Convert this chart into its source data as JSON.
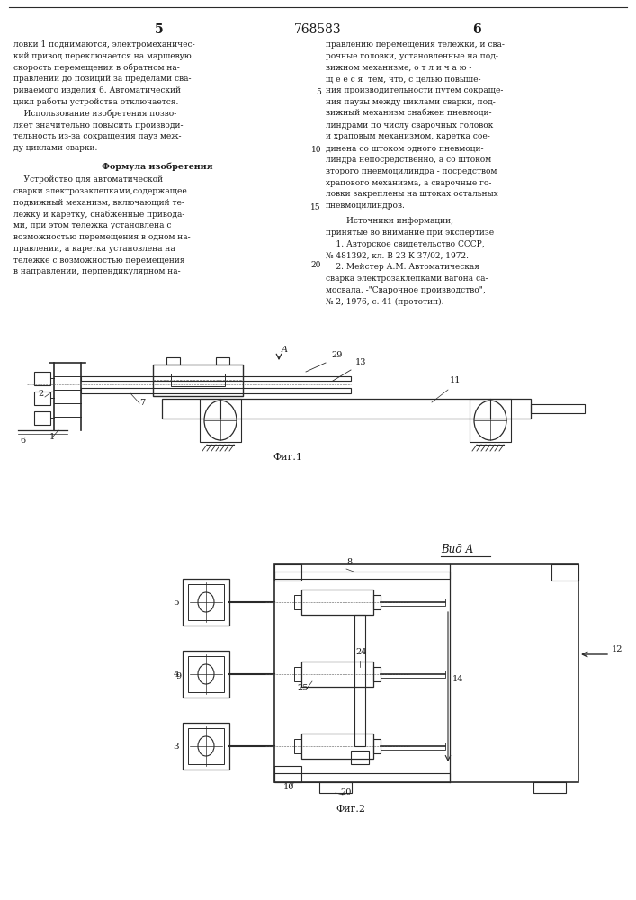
{
  "page_number_left": "5",
  "page_number_center": "768583",
  "page_number_right": "6",
  "left_col_text": [
    "ловки 1 поднимаются, электромеханичес-",
    "кий привод переключается на маршевую",
    "скорость перемещения в обратном на-",
    "правлении до позиций за пределами сва-",
    "риваемого изделия 6. Автоматический",
    "цикл работы устройства отключается.",
    "    Использование изобретения позво-",
    "ляет значительно повысить производи-",
    "тельность из-за сокращения пауз меж-",
    "ду циклами сварки."
  ],
  "formula_title": "Формула изобретения",
  "formula_text": [
    "    Устройство для автоматической",
    "сварки электрозаклепками,содержащее",
    "подвижный механизм, включающий те-",
    "лежку и каретку, снабженные привода-",
    "ми, при этом тележка установлена с",
    "возможностью перемещения в одном на-",
    "правлении, а каретка установлена на",
    "тележке с возможностью перемещения",
    "в направлении, перпендикулярном на-"
  ],
  "right_col_text": [
    "правлению перемещения тележки, и сва-",
    "рочные головки, установленные на под-",
    "вижном механизме, о т л и ч а ю -",
    "щ е е с я  тем, что, с целью повыше-",
    "ния производительности путем сокраще-",
    "ния паузы между циклами сварки, под-",
    "вижный механизм снабжен пневмоци-",
    "линдрами по числу сварочных головок",
    "и храповым механизмом, каретка сое-",
    "динена со штоком одного пневмоци-",
    "линдра непосредственно, а со штоком",
    "второго пневмоцилиндра - посредством",
    "храпового механизма, а сварочные го-",
    "ловки закреплены на штоках остальных",
    "пневмоцилиндров."
  ],
  "sources_title": "        Источники информации,",
  "sources_text": [
    "принятые во внимание при экспертизе",
    "    1. Авторское свидетельство СССР,",
    "№ 481392, кл. В 23 К 37/02, 1972.",
    "    2. Мейстер А.М. Автоматическая",
    "сварка электрозаклепками вагона са-",
    "мосвала. -\"Сварочное производство\",",
    "№ 2, 1976, с. 41 (прототип)."
  ],
  "fig1_label": "Фиг.1",
  "fig2_label": "Фиг.2",
  "view_label": "Вид А",
  "bg_color": "#ffffff",
  "text_color": "#1a1a1a",
  "line_color": "#2a2a2a"
}
